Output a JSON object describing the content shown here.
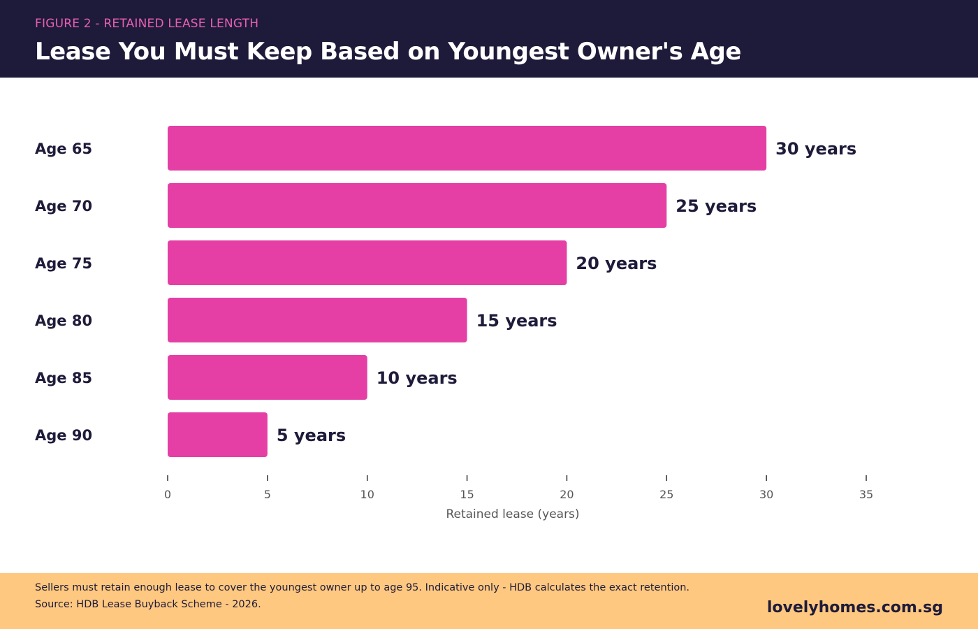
{
  "header": {
    "eyebrow": "FIGURE 2 - RETAINED LEASE LENGTH",
    "title": "Lease You Must Keep Based on Youngest Owner's Age"
  },
  "chart_data": {
    "type": "bar",
    "orientation": "horizontal",
    "title": "Lease You Must Keep Based on Youngest Owner's Age",
    "categories": [
      "Age 65",
      "Age 70",
      "Age 75",
      "Age 80",
      "Age 85",
      "Age 90"
    ],
    "values": [
      30,
      25,
      20,
      15,
      10,
      5
    ],
    "data_labels": [
      "30 years",
      "25 years",
      "20 years",
      "15 years",
      "10 years",
      "5 years"
    ],
    "xlabel": "Retained lease (years)",
    "ylabel": "",
    "xlim": [
      0,
      35
    ],
    "xticks": [
      0,
      5,
      10,
      15,
      20,
      25,
      30,
      35
    ],
    "grid": false,
    "legend": "none"
  },
  "footer": {
    "note": "Sellers must retain enough lease to cover the youngest owner up to age 95. Indicative only - HDB calculates the exact retention.",
    "source": "Source: HDB Lease Buyback Scheme - 2026.",
    "brand": "lovelyhomes.com.sg"
  },
  "colors": {
    "header_bg": "#1e1b3a",
    "eyebrow": "#e95fb5",
    "bar": "#e53fa6",
    "text_dark": "#1e1b3a",
    "axis": "#555555",
    "footer_bg": "#ffc880"
  }
}
